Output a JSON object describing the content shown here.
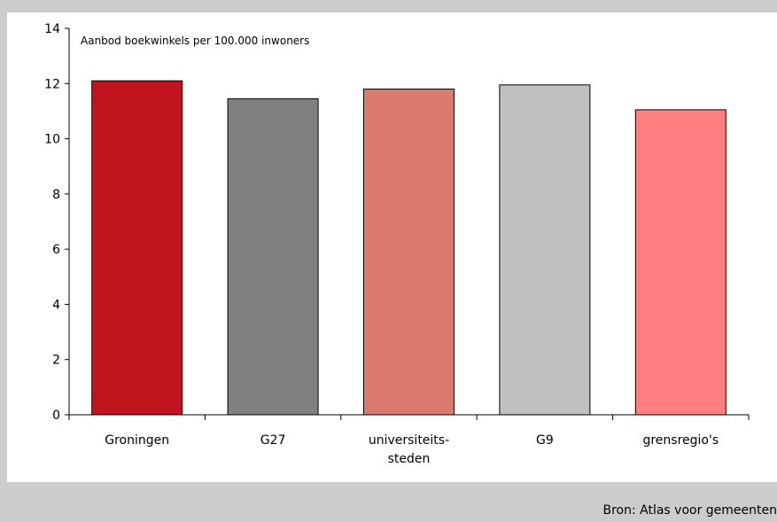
{
  "chart_data": {
    "type": "bar",
    "title": "Aanbod boekwinkels per 100.000 inwoners",
    "xlabel": "",
    "ylabel": "",
    "ylim": [
      0,
      14
    ],
    "yticks": [
      0,
      2,
      4,
      6,
      8,
      10,
      12,
      14
    ],
    "categories": [
      [
        "Groningen"
      ],
      [
        "G27"
      ],
      [
        "universiteits-",
        "steden"
      ],
      [
        "G9"
      ],
      [
        "grensregio's"
      ]
    ],
    "values": [
      12.1,
      11.45,
      11.8,
      11.95,
      11.05
    ],
    "colors": [
      "#c2141f",
      "#808080",
      "#dd7a6f",
      "#c0c0c0",
      "#ff7f80"
    ],
    "grid": false,
    "legend": "none"
  },
  "footer": {
    "source": "Bron: Atlas voor gemeenten"
  }
}
